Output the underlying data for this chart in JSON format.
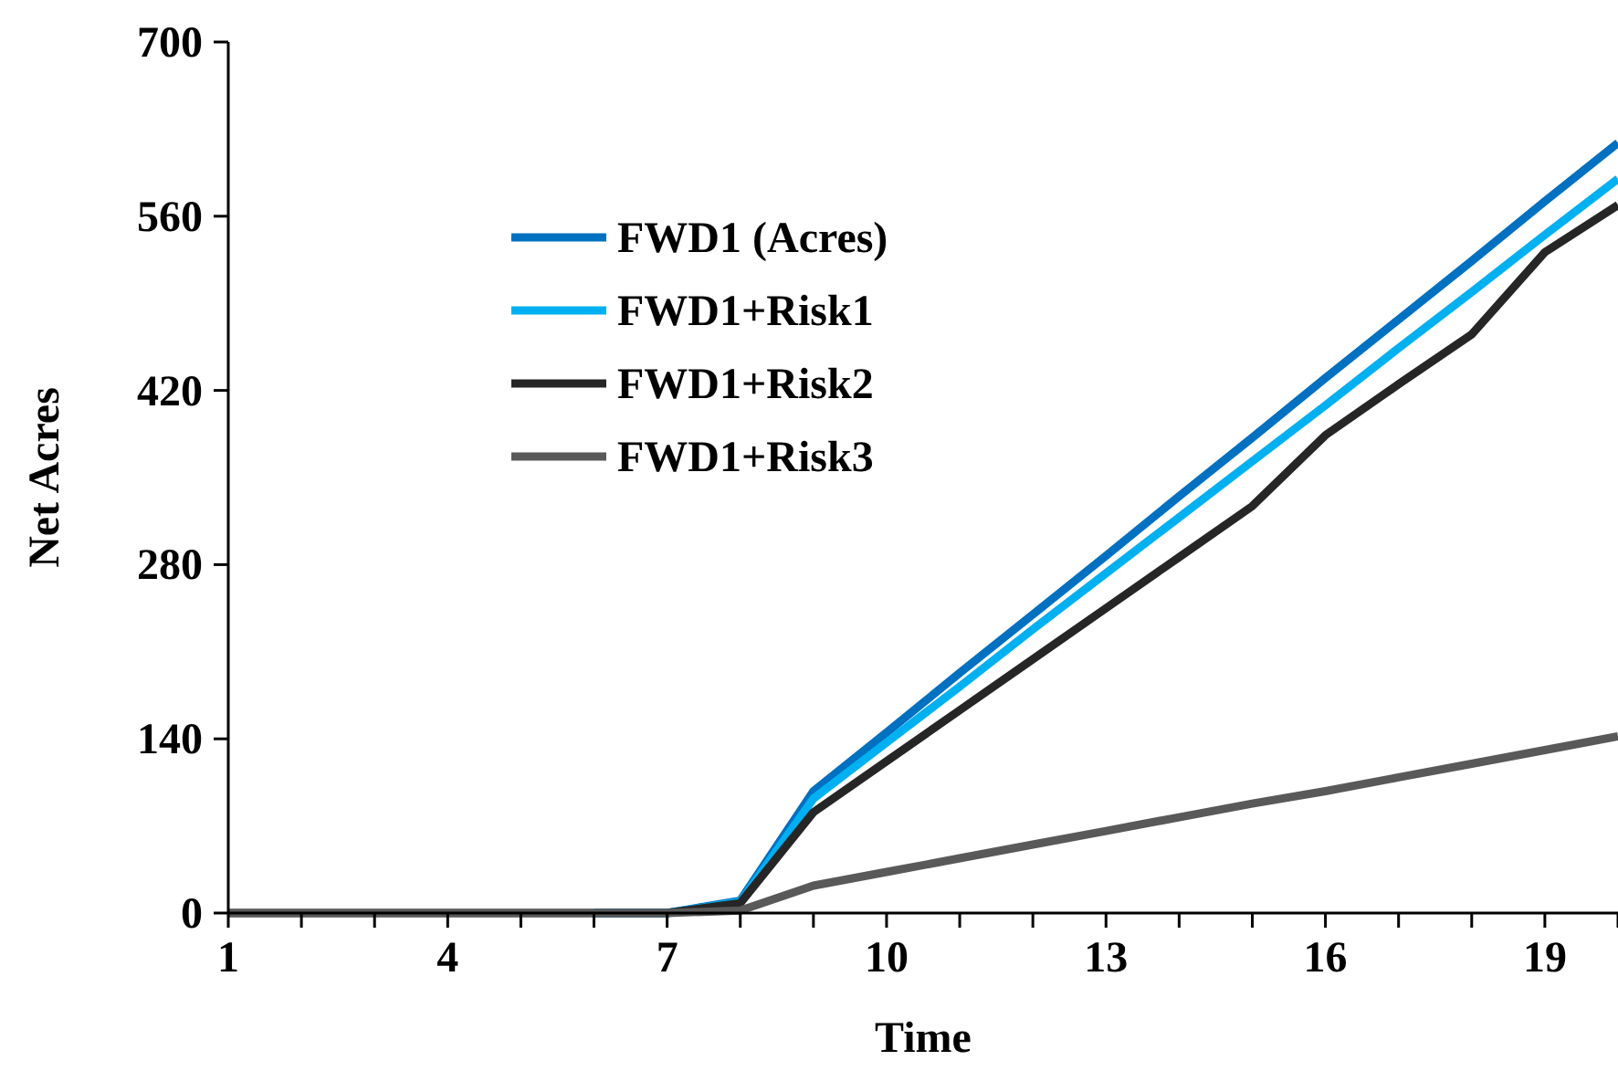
{
  "chart_data": {
    "type": "line",
    "xlabel": "Time",
    "ylabel": "Net Acres",
    "x": [
      1,
      2,
      3,
      4,
      5,
      6,
      7,
      8,
      9,
      10,
      11,
      12,
      13,
      14,
      15,
      16,
      17,
      18,
      19,
      20
    ],
    "series": [
      {
        "name": "FWD1 (Acres)",
        "color": "#0070c0",
        "values": [
          null,
          null,
          null,
          null,
          null,
          0,
          0,
          10,
          98,
          145,
          193,
          240,
          287,
          335,
          382,
          430,
          477,
          524,
          572,
          619
        ]
      },
      {
        "name": "FWD1+Risk1",
        "color": "#00b0f0",
        "values": [
          null,
          null,
          null,
          null,
          null,
          0,
          0,
          9,
          92,
          137,
          182,
          228,
          273,
          318,
          363,
          408,
          454,
          499,
          545,
          590
        ]
      },
      {
        "name": "FWD1+Risk2",
        "color": "#262626",
        "values": [
          0,
          0,
          0,
          0,
          0,
          0,
          0,
          8,
          81,
          122,
          163,
          204,
          245,
          286,
          327,
          384,
          425,
          465,
          531,
          569
        ]
      },
      {
        "name": "FWD1+Risk3",
        "color": "#595959",
        "values": [
          0,
          0,
          0,
          0,
          0,
          0,
          0,
          2,
          22,
          33,
          44,
          55,
          66,
          77,
          88,
          98,
          109,
          120,
          131,
          142
        ]
      }
    ],
    "xlim": [
      1,
      20
    ],
    "ylim": [
      0,
      700
    ],
    "xticks": [
      1,
      {
        "value": 2,
        "label": null
      },
      {
        "value": 3,
        "label": null
      },
      4,
      {
        "value": 5,
        "label": null
      },
      {
        "value": 6,
        "label": null
      },
      7,
      {
        "value": 8,
        "label": null
      },
      {
        "value": 9,
        "label": null
      },
      10,
      {
        "value": 11,
        "label": null
      },
      {
        "value": 12,
        "label": null
      },
      13,
      {
        "value": 14,
        "label": null
      },
      {
        "value": 15,
        "label": null
      },
      16,
      {
        "value": 17,
        "label": null
      },
      {
        "value": 18,
        "label": null
      },
      19,
      {
        "value": 20,
        "label": null
      }
    ],
    "yticks": [
      0,
      140,
      280,
      420,
      560,
      700
    ],
    "legend": "top left",
    "grid": false,
    "marker": "none",
    "line_style": "solid"
  }
}
